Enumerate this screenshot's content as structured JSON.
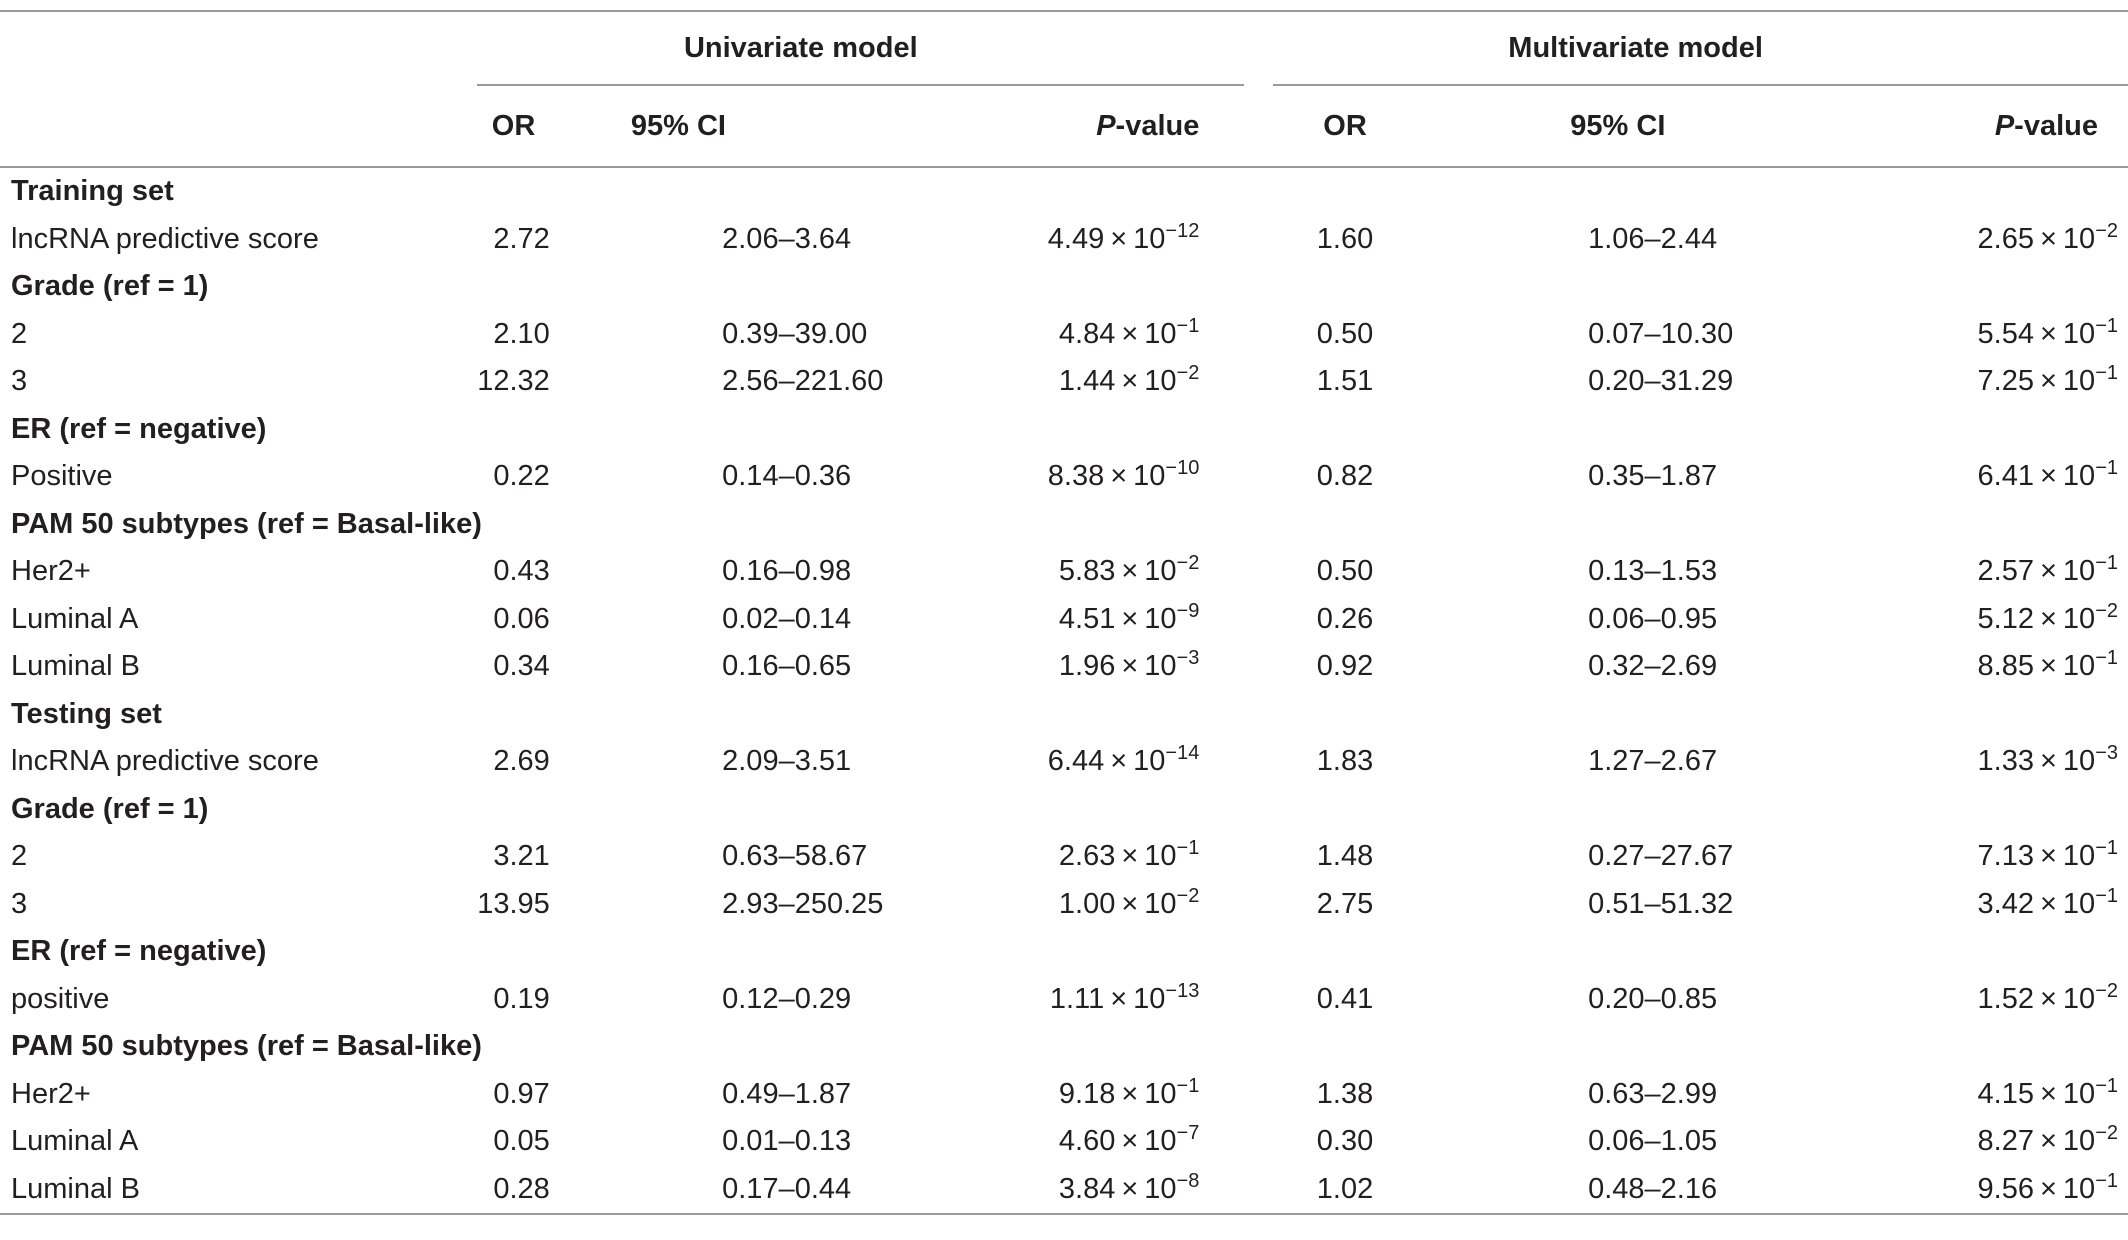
{
  "headers": {
    "univariate": "Univariate model",
    "multivariate": "Multivariate model",
    "or": "OR",
    "ci": "95% CI",
    "p_italic": "P",
    "p_rest": "-value"
  },
  "rows": [
    {
      "type": "section",
      "label": "Training set"
    },
    {
      "type": "data",
      "label": "lncRNA predictive score",
      "u_or": "2.72",
      "u_ci": "2.06–3.64",
      "u_pm": "4.49",
      "u_pe": "−12",
      "m_or": "1.60",
      "m_ci": "1.06–2.44",
      "m_pm": "2.65",
      "m_pe": "−2"
    },
    {
      "type": "section",
      "label": "Grade (ref = 1)"
    },
    {
      "type": "data",
      "label": "2",
      "u_or": "2.10",
      "u_ci": "0.39–39.00",
      "u_pm": "4.84",
      "u_pe": "−1",
      "m_or": "0.50",
      "m_ci": "0.07–10.30",
      "m_pm": "5.54",
      "m_pe": "−1"
    },
    {
      "type": "data",
      "label": "3",
      "u_or": "12.32",
      "u_ci": "2.56–221.60",
      "u_pm": "1.44",
      "u_pe": "−2",
      "m_or": "1.51",
      "m_ci": "0.20–31.29",
      "m_pm": "7.25",
      "m_pe": "−1"
    },
    {
      "type": "section",
      "label": "ER (ref = negative)"
    },
    {
      "type": "data",
      "label": "Positive",
      "u_or": "0.22",
      "u_ci": "0.14–0.36",
      "u_pm": "8.38",
      "u_pe": "−10",
      "m_or": "0.82",
      "m_ci": "0.35–1.87",
      "m_pm": "6.41",
      "m_pe": "−1"
    },
    {
      "type": "section",
      "label": "PAM 50 subtypes (ref = Basal-like)"
    },
    {
      "type": "data",
      "label": "Her2+",
      "u_or": "0.43",
      "u_ci": "0.16–0.98",
      "u_pm": "5.83",
      "u_pe": "−2",
      "m_or": "0.50",
      "m_ci": "0.13–1.53",
      "m_pm": "2.57",
      "m_pe": "−1"
    },
    {
      "type": "data",
      "label": "Luminal A",
      "u_or": "0.06",
      "u_ci": "0.02–0.14",
      "u_pm": "4.51",
      "u_pe": "−9",
      "m_or": "0.26",
      "m_ci": "0.06–0.95",
      "m_pm": "5.12",
      "m_pe": "−2"
    },
    {
      "type": "data",
      "label": "Luminal B",
      "u_or": "0.34",
      "u_ci": "0.16–0.65",
      "u_pm": "1.96",
      "u_pe": "−3",
      "m_or": "0.92",
      "m_ci": "0.32–2.69",
      "m_pm": "8.85",
      "m_pe": "−1"
    },
    {
      "type": "section",
      "label": "Testing set"
    },
    {
      "type": "data",
      "label": "lncRNA predictive score",
      "u_or": "2.69",
      "u_ci": "2.09–3.51",
      "u_pm": "6.44",
      "u_pe": "−14",
      "m_or": "1.83",
      "m_ci": "1.27–2.67",
      "m_pm": "1.33",
      "m_pe": "−3"
    },
    {
      "type": "section",
      "label": "Grade (ref = 1)"
    },
    {
      "type": "data",
      "label": "2",
      "u_or": "3.21",
      "u_ci": "0.63–58.67",
      "u_pm": "2.63",
      "u_pe": "−1",
      "m_or": "1.48",
      "m_ci": "0.27–27.67",
      "m_pm": "7.13",
      "m_pe": "−1"
    },
    {
      "type": "data",
      "label": "3",
      "u_or": "13.95",
      "u_ci": "2.93–250.25",
      "u_pm": "1.00",
      "u_pe": "−2",
      "m_or": "2.75",
      "m_ci": "0.51–51.32",
      "m_pm": "3.42",
      "m_pe": "−1"
    },
    {
      "type": "section",
      "label": "ER (ref = negative)"
    },
    {
      "type": "data",
      "label": "positive",
      "u_or": "0.19",
      "u_ci": "0.12–0.29",
      "u_pm": "1.11",
      "u_pe": "−13",
      "m_or": "0.41",
      "m_ci": "0.20–0.85",
      "m_pm": "1.52",
      "m_pe": "−2"
    },
    {
      "type": "section",
      "label": "PAM 50 subtypes (ref = Basal-like)"
    },
    {
      "type": "data",
      "label": "Her2+",
      "u_or": "0.97",
      "u_ci": "0.49–1.87",
      "u_pm": "9.18",
      "u_pe": "−1",
      "m_or": "1.38",
      "m_ci": "0.63–2.99",
      "m_pm": "4.15",
      "m_pe": "−1"
    },
    {
      "type": "data",
      "label": "Luminal A",
      "u_or": "0.05",
      "u_ci": "0.01–0.13",
      "u_pm": "4.60",
      "u_pe": "−7",
      "m_or": "0.30",
      "m_ci": "0.06–1.05",
      "m_pm": "8.27",
      "m_pe": "−2"
    },
    {
      "type": "data",
      "label": "Luminal B",
      "u_or": "0.28",
      "u_ci": "0.17–0.44",
      "u_pm": "3.84",
      "u_pe": "−8",
      "m_or": "1.02",
      "m_ci": "0.48–2.16",
      "m_pm": "9.56",
      "m_pe": "−1"
    }
  ]
}
